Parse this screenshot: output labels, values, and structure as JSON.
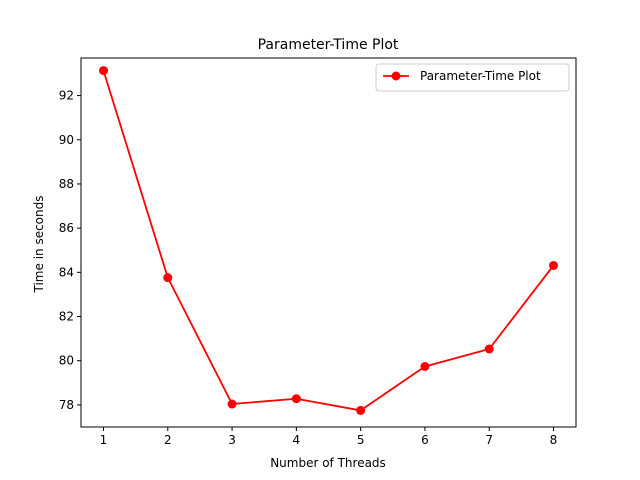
{
  "chart_data": {
    "type": "line",
    "title": "Parameter-Time Plot",
    "xlabel": "Number of Threads",
    "ylabel": "Time in seconds",
    "x": [
      1,
      2,
      3,
      4,
      5,
      6,
      7,
      8
    ],
    "xticks": [
      "1",
      "2",
      "3",
      "4",
      "5",
      "6",
      "7",
      "8"
    ],
    "yticks": [
      "78",
      "80",
      "82",
      "84",
      "86",
      "88",
      "90",
      "92"
    ],
    "ylim": [
      77.0,
      93.7
    ],
    "xlim": [
      0.65,
      8.35
    ],
    "grid": false,
    "legend_position": "top-right",
    "series": [
      {
        "name": "Parameter-Time Plot",
        "color": "#ff0000",
        "marker": "circle",
        "values": [
          93.13,
          83.76,
          78.04,
          78.28,
          77.75,
          79.74,
          80.53,
          84.31
        ]
      }
    ]
  }
}
